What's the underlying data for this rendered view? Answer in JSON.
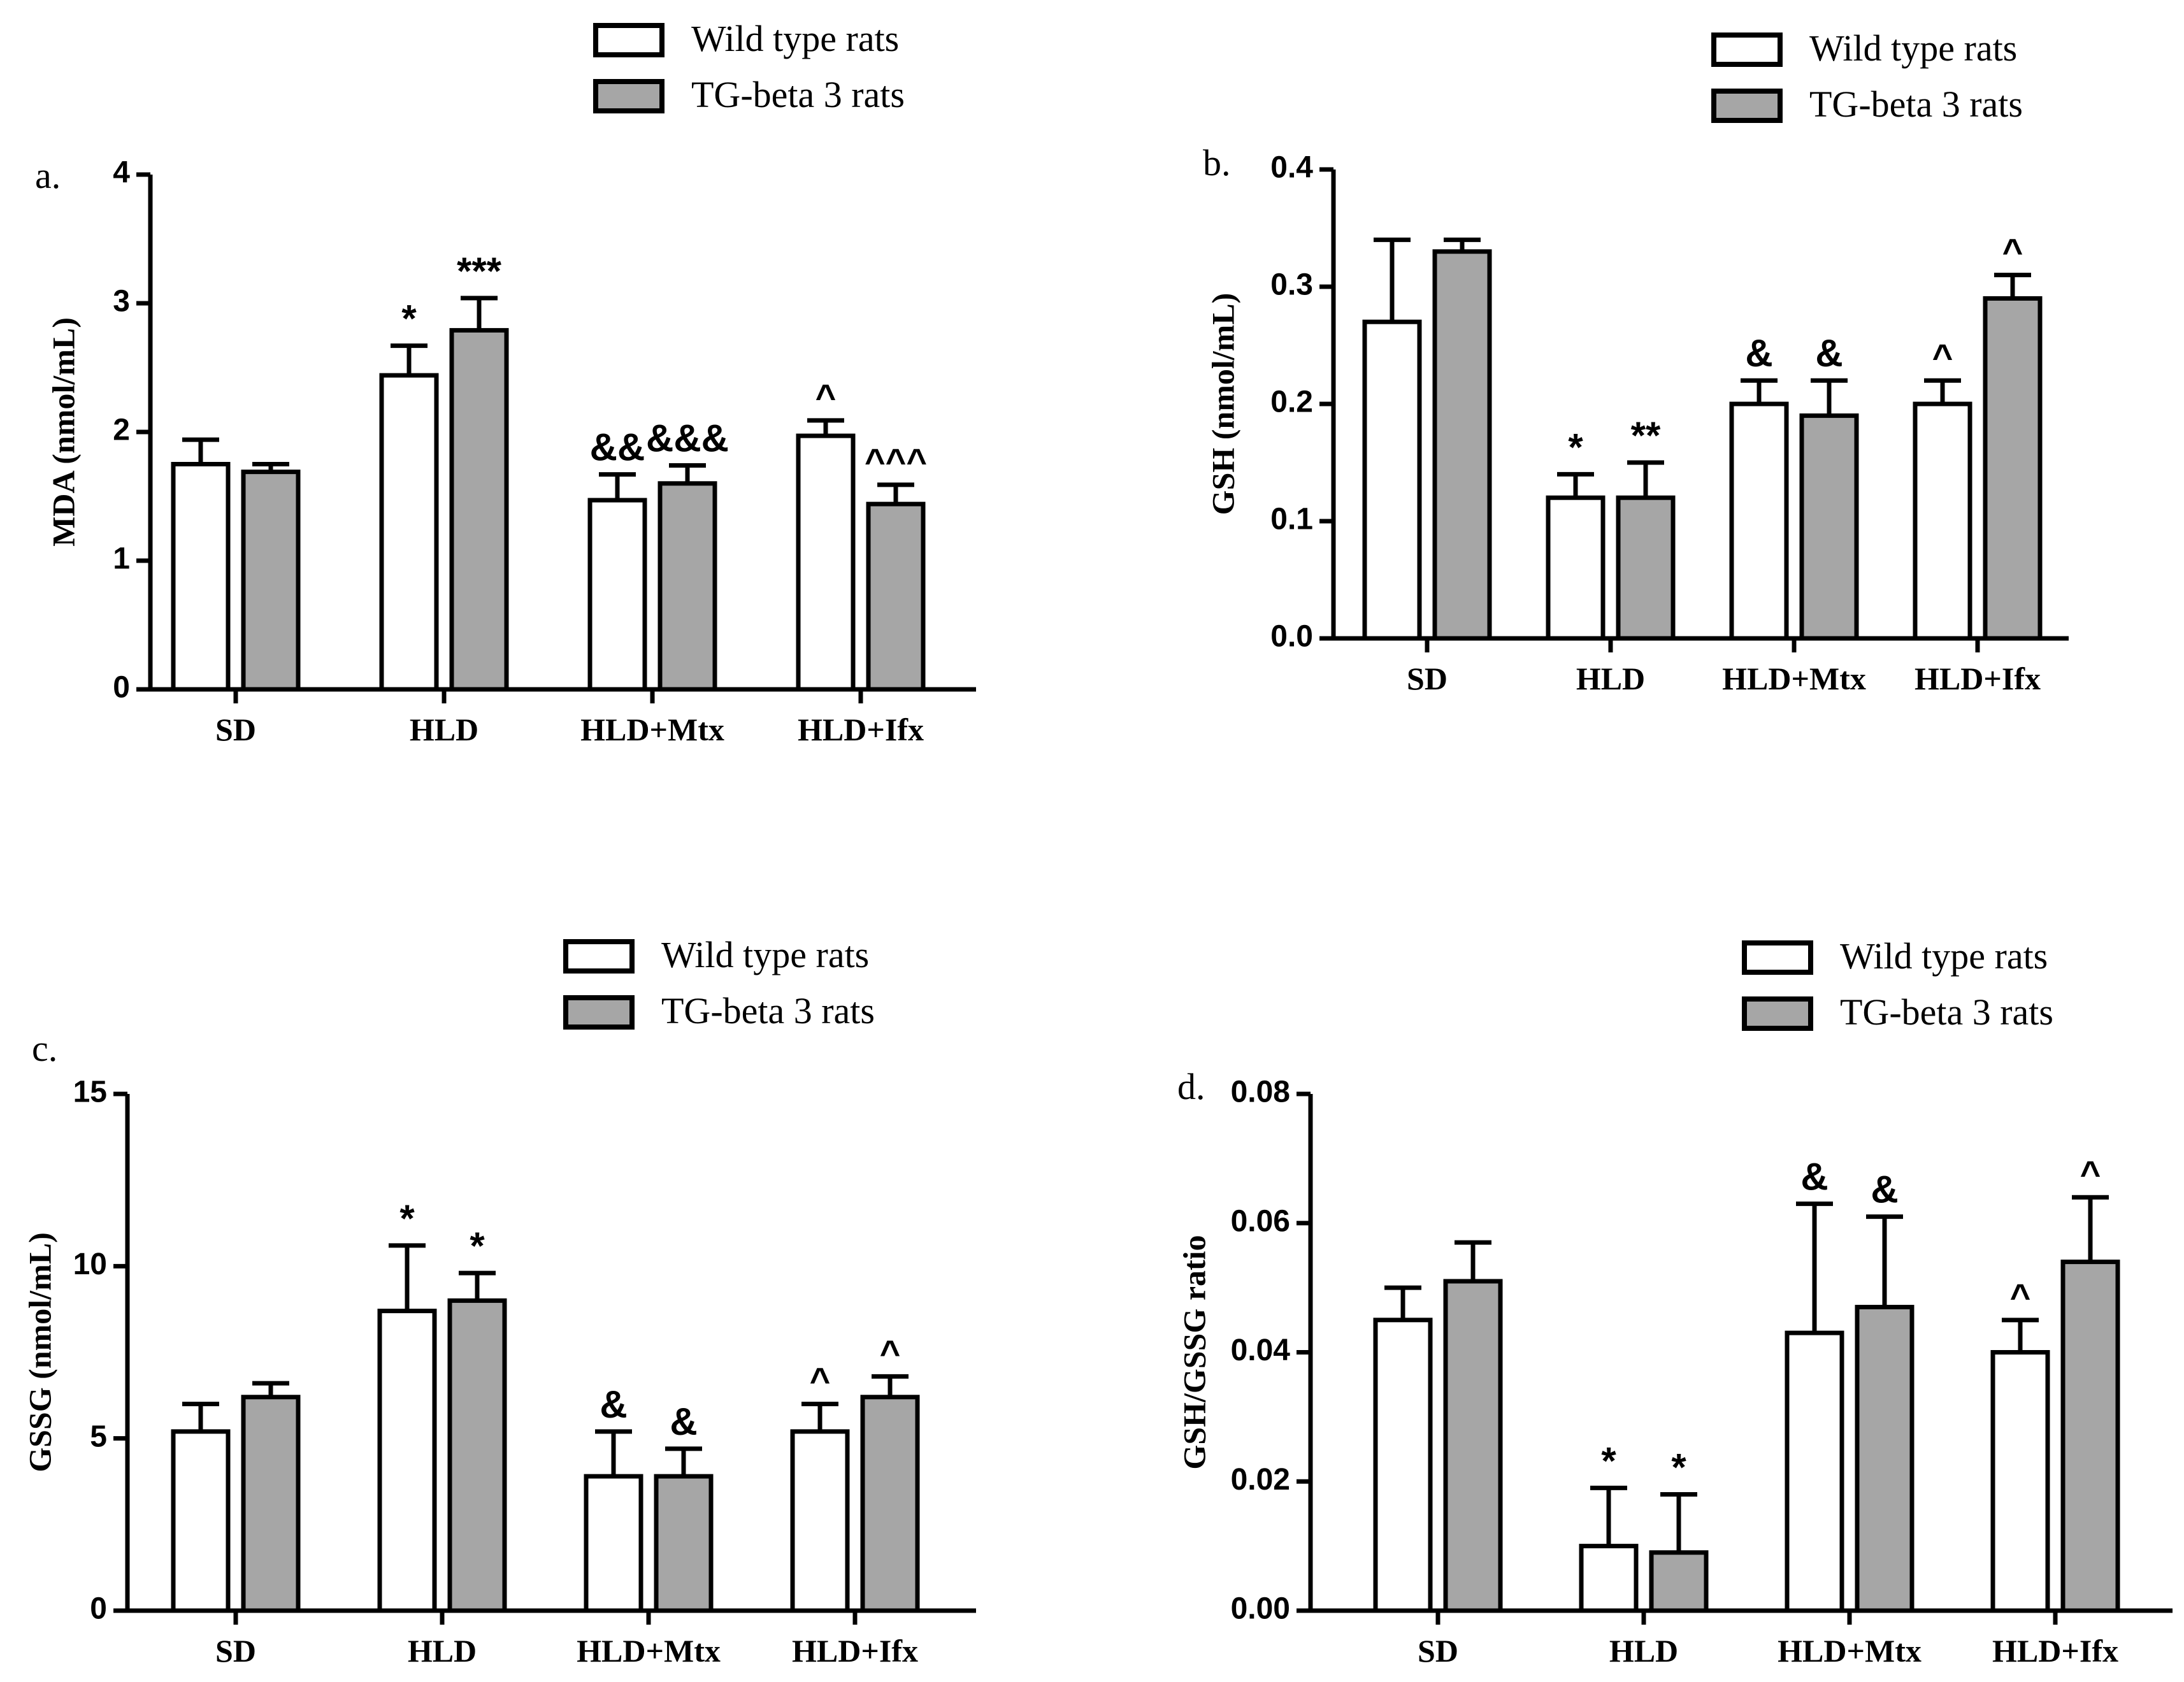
{
  "legend_labels": [
    "Wild type rats",
    "TG-beta 3 rats"
  ],
  "colors": {
    "wild": "#ffffff",
    "tg": "#a6a6a6",
    "stroke": "#000000"
  },
  "chart_data": [
    {
      "type": "bar",
      "panel_label": "a.",
      "ylabel": "MDA (nmol/mL)",
      "categories": [
        "SD",
        "HLD",
        "HLD+Mtx",
        "HLD+Ifx"
      ],
      "ylim": [
        0,
        4
      ],
      "yticks": [
        0,
        1,
        2,
        3,
        4
      ],
      "ytick_labels": [
        "0",
        "1",
        "2",
        "3",
        "4"
      ],
      "legend": "top-right",
      "grid": false,
      "series": [
        {
          "name": "Wild type rats",
          "values": [
            1.75,
            2.44,
            1.47,
            1.97
          ],
          "errors": [
            0.19,
            0.23,
            0.2,
            0.12
          ],
          "annotations": [
            "",
            "*",
            "&&",
            "^"
          ]
        },
        {
          "name": "TG-beta 3 rats",
          "values": [
            1.69,
            2.79,
            1.6,
            1.44
          ],
          "errors": [
            0.06,
            0.25,
            0.14,
            0.15
          ],
          "annotations": [
            "",
            "***",
            "&&&",
            "^^^"
          ]
        }
      ]
    },
    {
      "type": "bar",
      "panel_label": "b.",
      "ylabel": "GSH (nmol/mL)",
      "categories": [
        "SD",
        "HLD",
        "HLD+Mtx",
        "HLD+Ifx"
      ],
      "ylim": [
        0,
        0.4
      ],
      "yticks": [
        0,
        0.1,
        0.2,
        0.3,
        0.4
      ],
      "ytick_labels": [
        "0.0",
        "0.1",
        "0.2",
        "0.3",
        "0.4"
      ],
      "legend": "top-right",
      "grid": false,
      "series": [
        {
          "name": "Wild type rats",
          "values": [
            0.27,
            0.12,
            0.2,
            0.2
          ],
          "errors": [
            0.07,
            0.02,
            0.02,
            0.02
          ],
          "annotations": [
            "",
            "*",
            "&",
            "^"
          ]
        },
        {
          "name": "TG-beta 3 rats",
          "values": [
            0.33,
            0.12,
            0.19,
            0.29
          ],
          "errors": [
            0.01,
            0.03,
            0.03,
            0.02
          ],
          "annotations": [
            "",
            "**",
            "&",
            "^"
          ]
        }
      ]
    },
    {
      "type": "bar",
      "panel_label": "c.",
      "ylabel": "GSSG (nmol/mL)",
      "categories": [
        "SD",
        "HLD",
        "HLD+Mtx",
        "HLD+Ifx"
      ],
      "ylim": [
        0,
        15
      ],
      "yticks": [
        0,
        5,
        10,
        15
      ],
      "ytick_labels": [
        "0",
        "5",
        "10",
        "15"
      ],
      "legend": "top-right",
      "grid": false,
      "series": [
        {
          "name": "Wild type rats",
          "values": [
            5.2,
            8.7,
            3.9,
            5.2
          ],
          "errors": [
            0.8,
            1.9,
            1.3,
            0.8
          ],
          "annotations": [
            "",
            "*",
            "&",
            "^"
          ]
        },
        {
          "name": "TG-beta 3 rats",
          "values": [
            6.2,
            9.0,
            3.9,
            6.2
          ],
          "errors": [
            0.4,
            0.8,
            0.8,
            0.6
          ],
          "annotations": [
            "",
            "*",
            "&",
            "^"
          ]
        }
      ]
    },
    {
      "type": "bar",
      "panel_label": "d.",
      "ylabel": "GSH/GSSG ratio",
      "categories": [
        "SD",
        "HLD",
        "HLD+Mtx",
        "HLD+Ifx"
      ],
      "ylim": [
        0,
        0.08
      ],
      "yticks": [
        0,
        0.02,
        0.04,
        0.06,
        0.08
      ],
      "ytick_labels": [
        "0.00",
        "0.02",
        "0.04",
        "0.06",
        "0.08"
      ],
      "legend": "top-right",
      "grid": false,
      "series": [
        {
          "name": "Wild type rats",
          "values": [
            0.045,
            0.01,
            0.043,
            0.04
          ],
          "errors": [
            0.005,
            0.009,
            0.02,
            0.005
          ],
          "annotations": [
            "",
            "*",
            "&",
            "^"
          ]
        },
        {
          "name": "TG-beta 3 rats",
          "values": [
            0.051,
            0.009,
            0.047,
            0.054
          ],
          "errors": [
            0.006,
            0.009,
            0.014,
            0.01
          ],
          "annotations": [
            "",
            "*",
            "&",
            "^"
          ]
        }
      ]
    }
  ]
}
